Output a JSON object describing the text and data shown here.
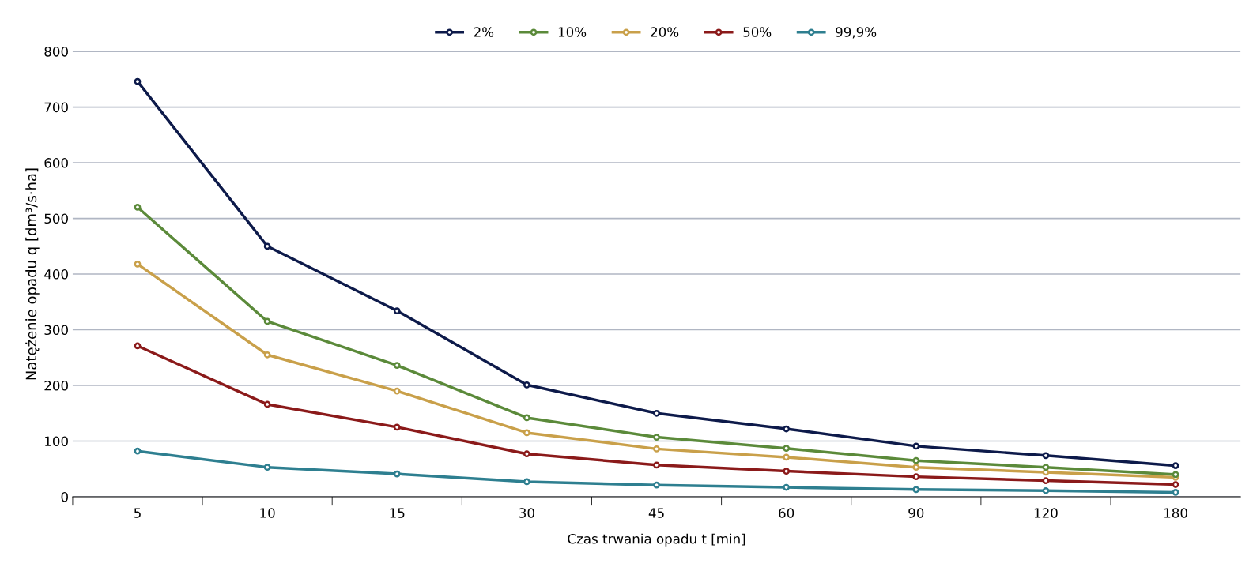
{
  "chart_data": {
    "type": "line",
    "xlabel": "Czas trwania opadu t [min]",
    "ylabel": "Natężenie opadu q [dm³/s·ha]",
    "categories": [
      "5",
      "10",
      "15",
      "30",
      "45",
      "60",
      "90",
      "120",
      "180"
    ],
    "series": [
      {
        "name": "2%",
        "color": "#0d1a4a",
        "values": [
          746,
          450,
          334,
          201,
          150,
          122,
          91,
          74,
          56
        ]
      },
      {
        "name": "10%",
        "color": "#5b8a3a",
        "values": [
          520,
          315,
          236,
          142,
          107,
          87,
          65,
          53,
          40
        ]
      },
      {
        "name": "20%",
        "color": "#c9a04a",
        "values": [
          418,
          255,
          190,
          115,
          86,
          71,
          53,
          44,
          35
        ]
      },
      {
        "name": "50%",
        "color": "#8b1a1a",
        "values": [
          271,
          166,
          125,
          77,
          57,
          46,
          36,
          29,
          22
        ]
      },
      {
        "name": "99,9%",
        "color": "#2e7f90",
        "values": [
          82,
          53,
          41,
          27,
          21,
          17,
          13,
          11,
          8
        ]
      }
    ],
    "ylim": [
      0,
      800
    ],
    "yticks": [
      0,
      100,
      200,
      300,
      400,
      500,
      600,
      700,
      800
    ],
    "grid": "y",
    "legend": "top",
    "marker": "circle",
    "line_style": "solid"
  }
}
